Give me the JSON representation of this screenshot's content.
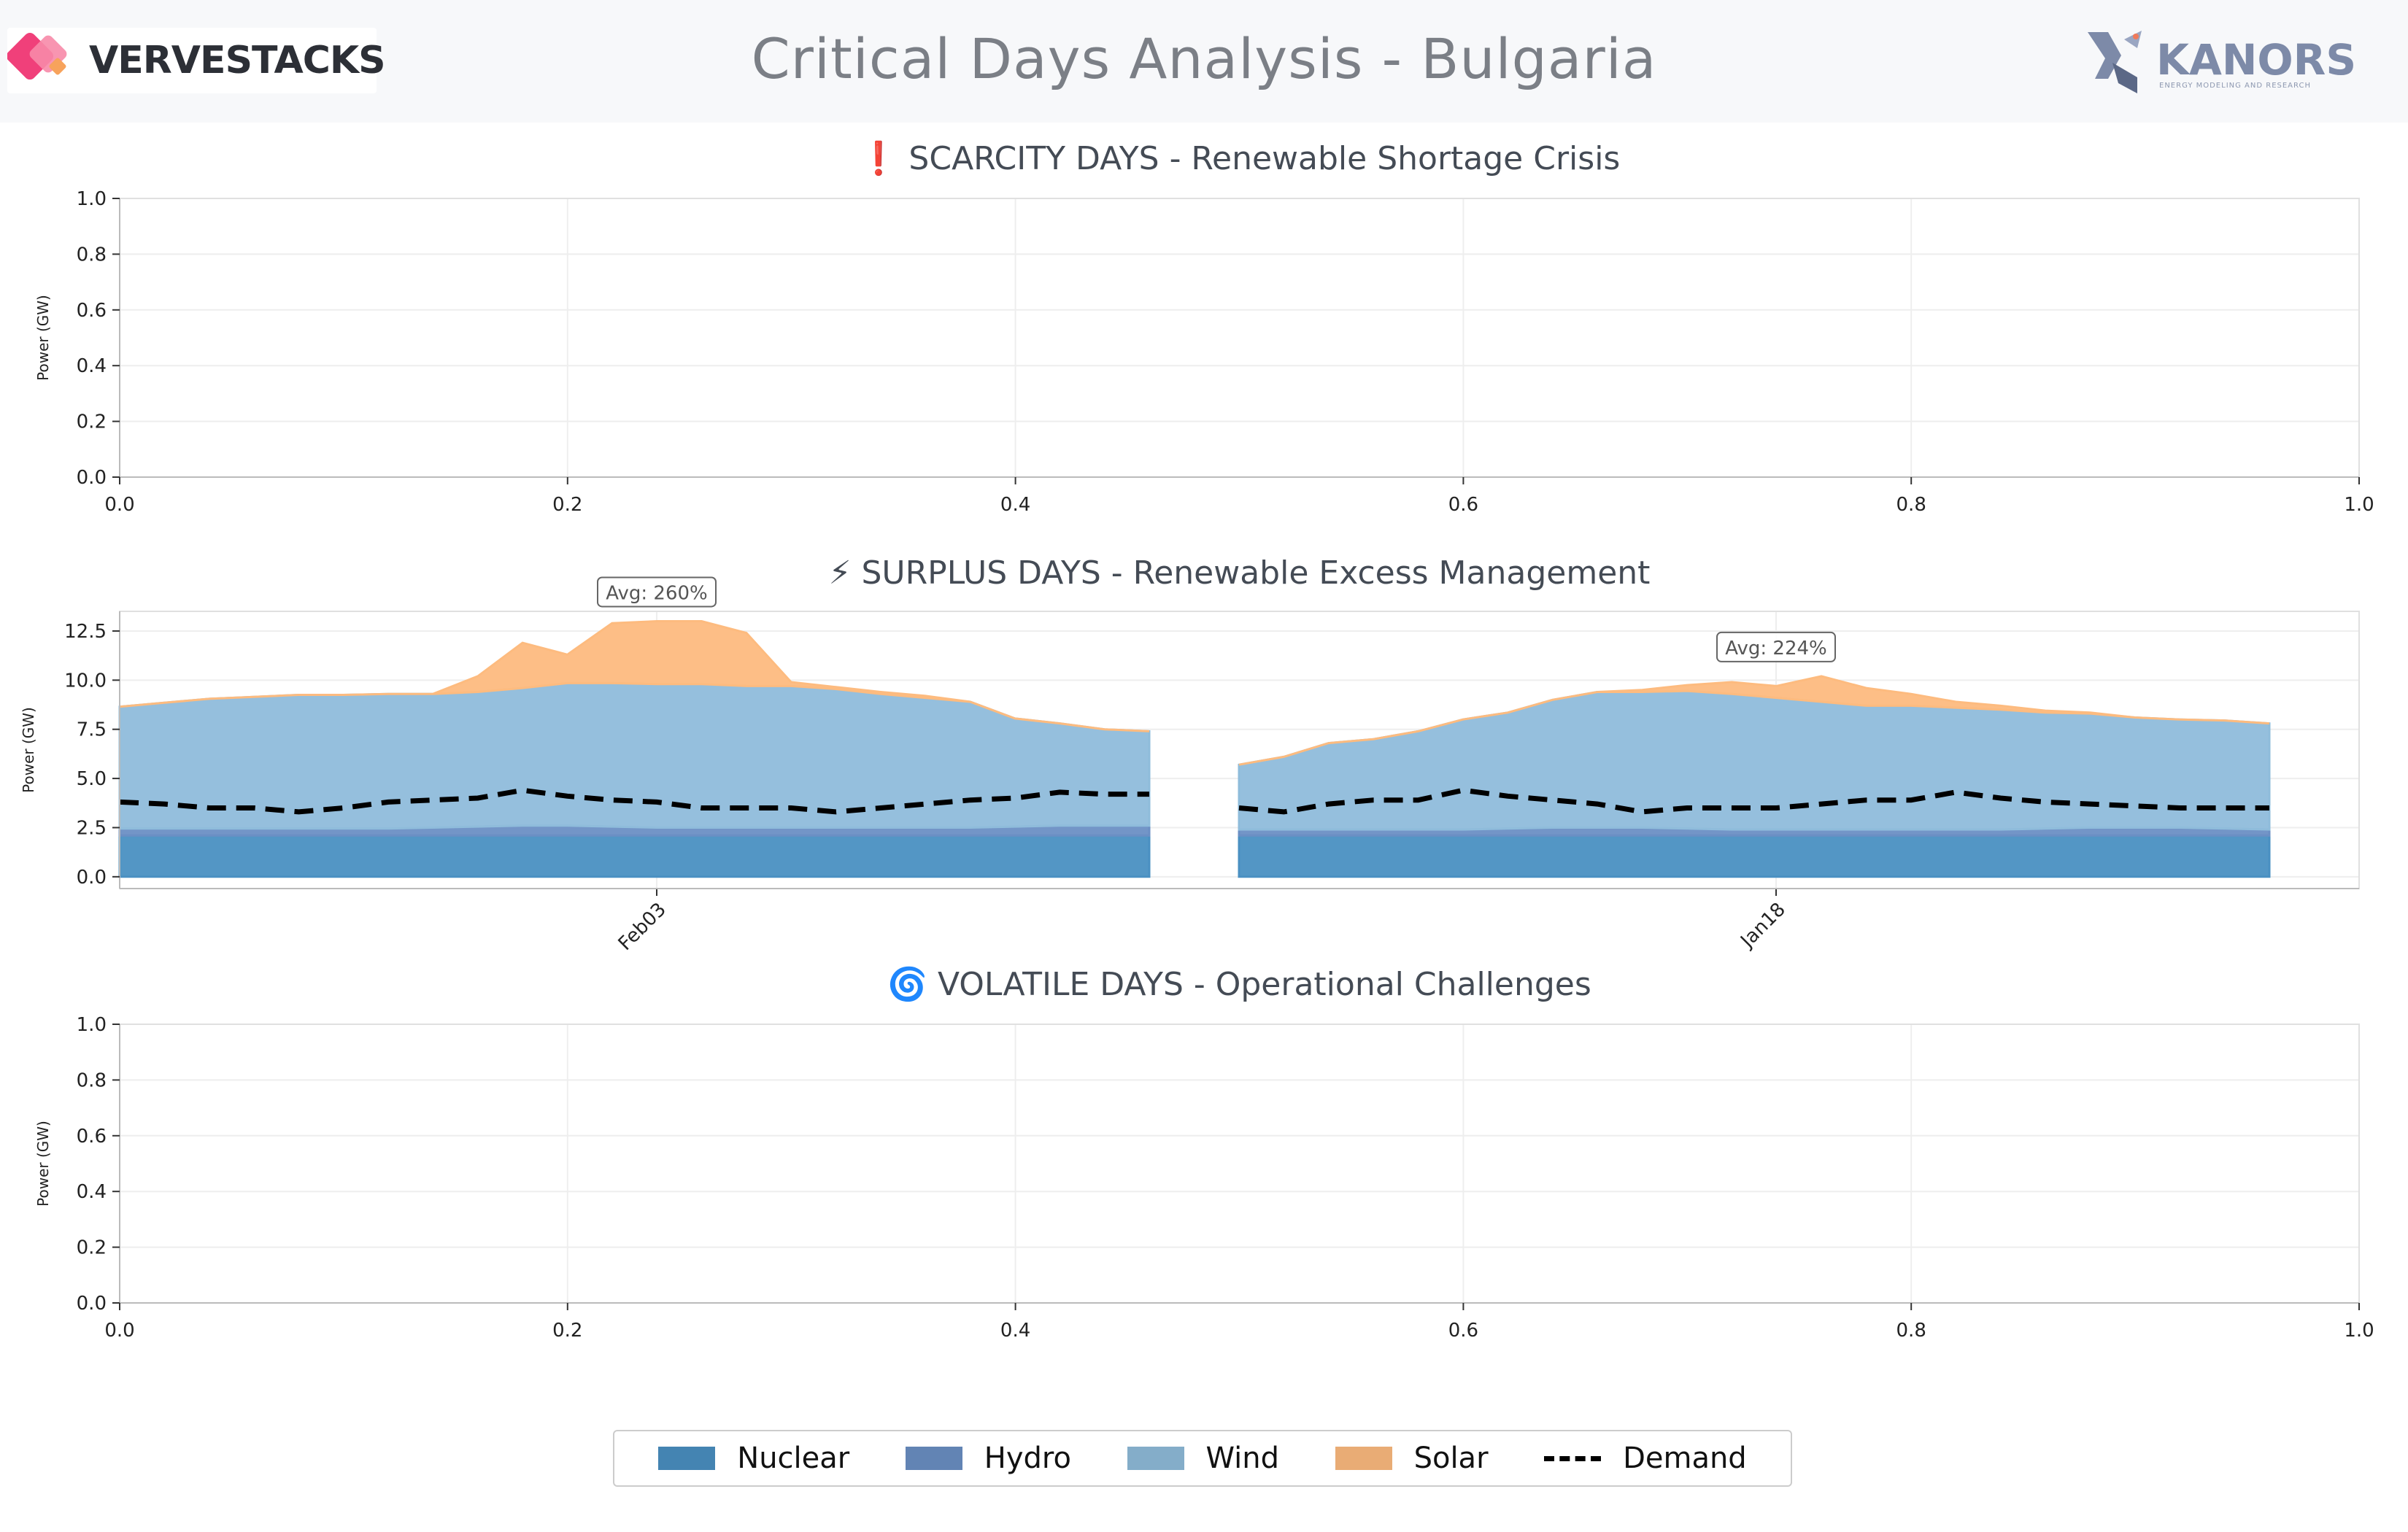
{
  "header": {
    "title": "Critical Days Analysis - Bulgaria",
    "brand_left": "VERVESTACKS",
    "brand_right": "KANORS",
    "brand_right_sub": "ENERGY MODELING AND RESEARCH"
  },
  "colors": {
    "nuclear": "#4a90c2",
    "hydro": "#6b8fc4",
    "wind": "#8fbcdb",
    "solar": "#fdbb7f",
    "demand": "#000000"
  },
  "chart_data": [
    {
      "type": "area",
      "title": "❗ SCARCITY DAYS - Renewable Shortage Crisis",
      "ylabel": "Power (GW)",
      "xlim": [
        0,
        1
      ],
      "ylim": [
        0,
        1
      ],
      "xticks": [
        "0.0",
        "0.2",
        "0.4",
        "0.6",
        "0.8",
        "1.0"
      ],
      "yticks": [
        "0.0",
        "0.2",
        "0.4",
        "0.6",
        "0.8",
        "1.0"
      ],
      "grid": true,
      "series": []
    },
    {
      "type": "area",
      "stacked": true,
      "title": "⚡ SURPLUS DAYS - Renewable Excess Management",
      "ylabel": "Power (GW)",
      "ylim": [
        -0.6,
        13.5
      ],
      "yticks": [
        "0.0",
        "2.5",
        "5.0",
        "7.5",
        "10.0",
        "12.5"
      ],
      "grid": true,
      "days": [
        {
          "label": "Feb03",
          "annotation": "Avg: 260%",
          "nuclear": [
            2.1,
            2.1,
            2.1,
            2.1,
            2.1,
            2.1,
            2.1,
            2.1,
            2.1,
            2.1,
            2.1,
            2.1,
            2.1,
            2.1,
            2.1,
            2.1,
            2.1,
            2.1,
            2.1,
            2.1,
            2.1,
            2.1,
            2.1,
            2.1
          ],
          "hydro": [
            0.35,
            0.35,
            0.35,
            0.35,
            0.35,
            0.35,
            0.35,
            0.4,
            0.45,
            0.5,
            0.5,
            0.45,
            0.4,
            0.4,
            0.4,
            0.4,
            0.4,
            0.4,
            0.4,
            0.4,
            0.45,
            0.5,
            0.5,
            0.5
          ],
          "wind": [
            6.2,
            6.4,
            6.6,
            6.7,
            6.8,
            6.8,
            6.85,
            6.8,
            6.85,
            7.0,
            7.25,
            7.3,
            7.3,
            7.3,
            7.2,
            7.2,
            7.05,
            6.8,
            6.6,
            6.4,
            5.5,
            5.2,
            4.9,
            4.8
          ],
          "solar": [
            0,
            0,
            0,
            0,
            0,
            0,
            0,
            0,
            0.8,
            2.3,
            1.45,
            3.05,
            3.2,
            3.2,
            2.7,
            0.2,
            0.1,
            0.1,
            0.1,
            0,
            0,
            0,
            0,
            0
          ],
          "demand": [
            3.8,
            3.7,
            3.5,
            3.5,
            3.3,
            3.5,
            3.8,
            3.9,
            4.0,
            4.4,
            4.1,
            3.9,
            3.8,
            3.5,
            3.5,
            3.5,
            3.3,
            3.5,
            3.7,
            3.9,
            4.0,
            4.3,
            4.2,
            4.2
          ]
        },
        {
          "label": "Jan18",
          "annotation": "Avg: 224%",
          "nuclear": [
            2.1,
            2.1,
            2.1,
            2.1,
            2.1,
            2.1,
            2.1,
            2.1,
            2.1,
            2.1,
            2.1,
            2.1,
            2.1,
            2.1,
            2.1,
            2.1,
            2.1,
            2.1,
            2.1,
            2.1,
            2.1,
            2.1,
            2.1,
            2.1
          ],
          "hydro": [
            0.3,
            0.3,
            0.3,
            0.3,
            0.3,
            0.3,
            0.35,
            0.4,
            0.4,
            0.4,
            0.35,
            0.3,
            0.3,
            0.3,
            0.3,
            0.3,
            0.3,
            0.3,
            0.35,
            0.4,
            0.4,
            0.4,
            0.35,
            0.3
          ],
          "wind": [
            3.3,
            3.7,
            4.4,
            4.6,
            5.0,
            5.6,
            5.9,
            6.5,
            6.9,
            6.9,
            7.0,
            6.9,
            6.7,
            6.5,
            6.3,
            6.3,
            6.2,
            6.1,
            5.9,
            5.8,
            5.6,
            5.5,
            5.5,
            5.4
          ],
          "solar": [
            0,
            0,
            0,
            0,
            0,
            0,
            0,
            0,
            0,
            0.1,
            0.3,
            0.6,
            0.6,
            1.3,
            0.9,
            0.6,
            0.3,
            0.2,
            0.1,
            0.05,
            0,
            0,
            0,
            0
          ],
          "demand": [
            3.5,
            3.3,
            3.7,
            3.9,
            3.9,
            4.4,
            4.1,
            3.9,
            3.7,
            3.3,
            3.5,
            3.5,
            3.5,
            3.7,
            3.9,
            3.9,
            4.3,
            4.0,
            3.8,
            3.7,
            3.6,
            3.5,
            3.5,
            3.5
          ]
        }
      ]
    },
    {
      "type": "area",
      "title": "🌀 VOLATILE DAYS - Operational Challenges",
      "ylabel": "Power (GW)",
      "xlim": [
        0,
        1
      ],
      "ylim": [
        0,
        1
      ],
      "xticks": [
        "0.0",
        "0.2",
        "0.4",
        "0.6",
        "0.8",
        "1.0"
      ],
      "yticks": [
        "0.0",
        "0.2",
        "0.4",
        "0.6",
        "0.8",
        "1.0"
      ],
      "grid": true,
      "series": []
    }
  ],
  "legend": [
    {
      "key": "nuclear",
      "label": "Nuclear"
    },
    {
      "key": "hydro",
      "label": "Hydro"
    },
    {
      "key": "wind",
      "label": "Wind"
    },
    {
      "key": "solar",
      "label": "Solar"
    },
    {
      "key": "demand",
      "label": "Demand"
    }
  ]
}
